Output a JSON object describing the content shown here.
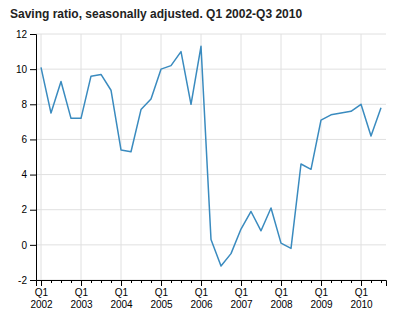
{
  "chart_data": {
    "type": "line",
    "title": "Saving ratio, seasonally adjusted. Q1 2002-Q3 2010",
    "categories": [
      "Q1\n2002",
      null,
      null,
      null,
      "Q1\n2003",
      null,
      null,
      null,
      "Q1\n2004",
      null,
      null,
      null,
      "Q1\n2005",
      null,
      null,
      null,
      "Q1\n2006",
      null,
      null,
      null,
      "Q1\n2007",
      null,
      null,
      null,
      "Q1\n2008",
      null,
      null,
      null,
      "Q1\n2009",
      null,
      null,
      null,
      "Q1\n2010",
      null,
      null
    ],
    "values": [
      10.1,
      7.5,
      9.3,
      7.2,
      7.2,
      9.6,
      9.7,
      8.8,
      5.4,
      5.3,
      7.7,
      8.3,
      10.0,
      10.2,
      11.0,
      8.0,
      11.3,
      0.3,
      -1.2,
      -0.5,
      0.9,
      1.9,
      0.8,
      2.1,
      0.1,
      -0.2,
      4.6,
      4.3,
      7.1,
      7.4,
      7.5,
      7.6,
      8.0,
      6.2,
      7.8
    ],
    "color": "#3a8bbf",
    "ylim": [
      -2,
      12
    ],
    "yticks": [
      -2,
      0,
      2,
      4,
      6,
      8,
      10,
      12
    ],
    "grid": true
  }
}
